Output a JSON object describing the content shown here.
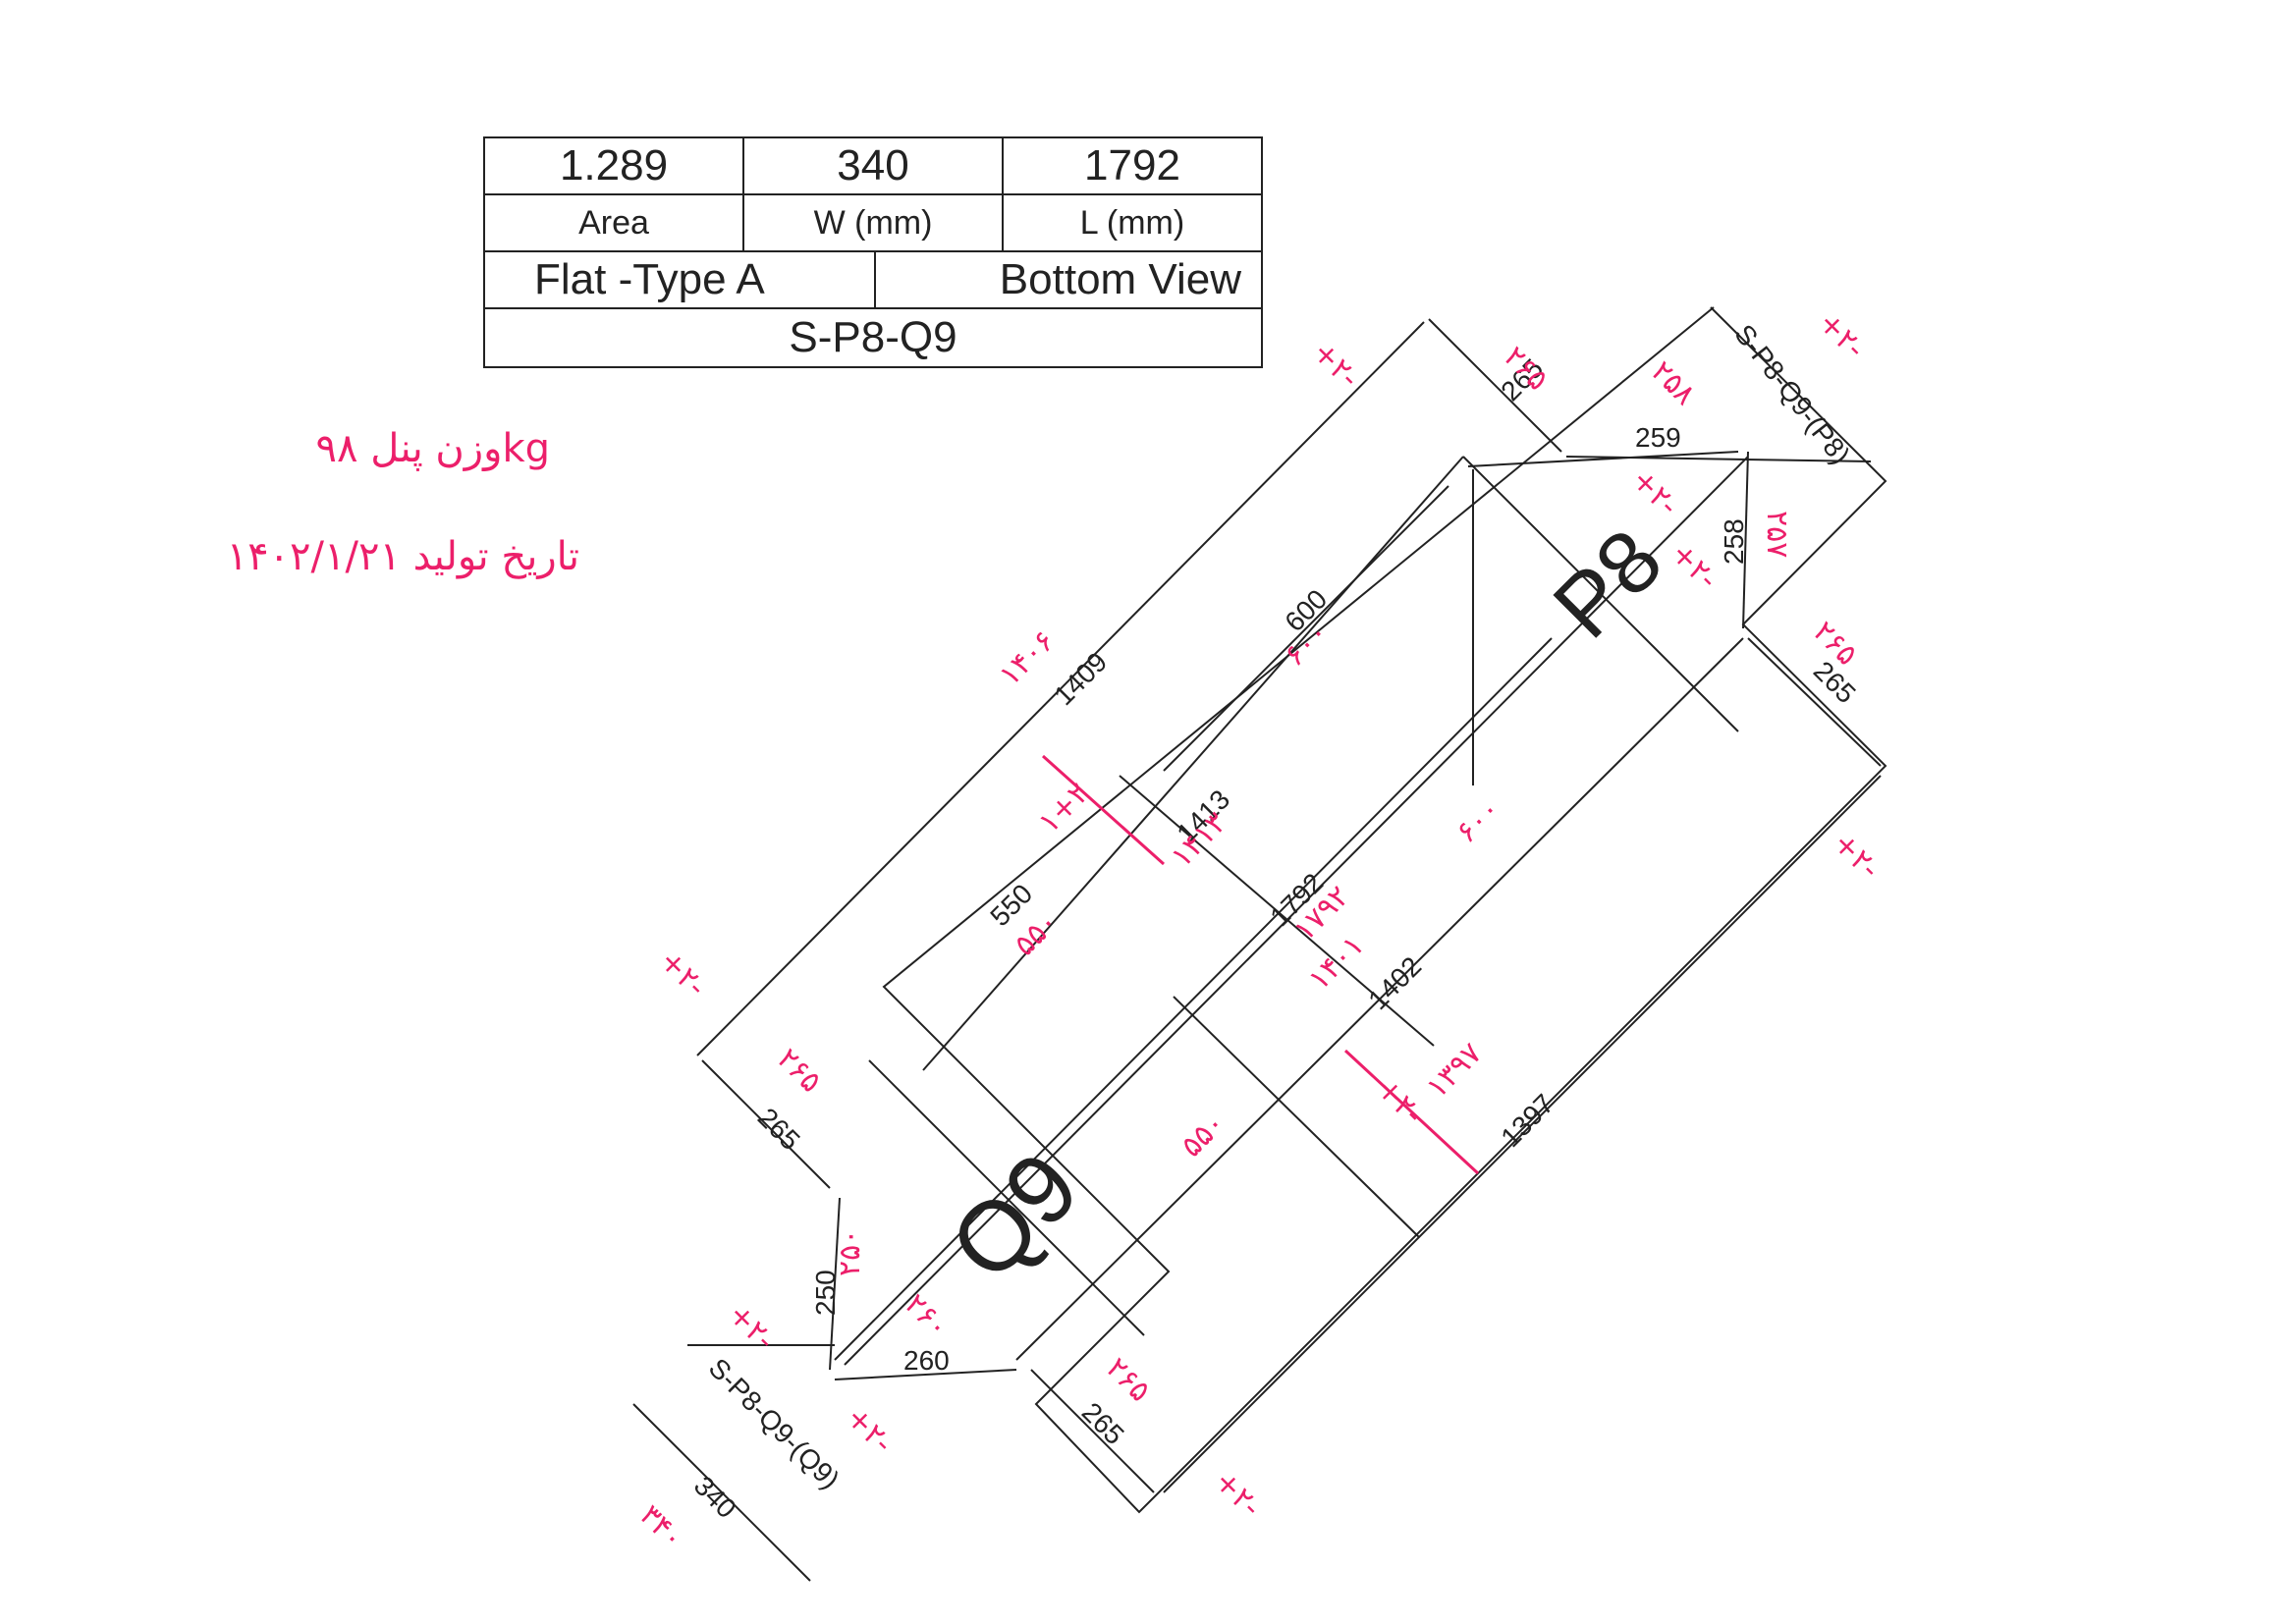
{
  "title_block": {
    "area_value": "1.289",
    "width_value": "340",
    "length_value": "1792",
    "area_label": "Area",
    "width_label": "W (mm)",
    "length_label": "L (mm)",
    "type_label": "Flat -Type A",
    "view_label": "Bottom View",
    "drawing_id": "S-P8-Q9"
  },
  "panel_labels": {
    "p8": "P8",
    "q9": "Q9",
    "edge_top": "S-P8-Q9-(P8)",
    "edge_bottom": "S-P8-Q9-(Q9)"
  },
  "dimensions": {
    "d265_a": "265",
    "d265_b": "265",
    "d265_c": "265",
    "d265_d": "265",
    "d259": "259",
    "d258": "258",
    "d260": "260",
    "d250": "250",
    "d600": "600",
    "d550": "550",
    "d1409": "1409",
    "d1413": "1413",
    "d1792": "1792",
    "d1402": "1402",
    "d1397": "1397",
    "d340": "340"
  },
  "handwritten": {
    "weight": "وزن پنل ۹۸kg",
    "date": "تاریخ تولید ۱۴۰۲/۱/۲۱",
    "n1409": "۱۴۰۶",
    "n1409b": "۱+۲",
    "n600": "۶۰۰",
    "n550": "۵۵۰",
    "n550b": "۵۵۰",
    "n1413": "۱۴۱۳",
    "n1792": "۱۷۹۲",
    "n1402": "۱۴۰۱",
    "n600b": "۶۰۰",
    "n265a": "۲۶۵",
    "n265b": "۲۶۵",
    "n265c": "۲۶۵",
    "n265d": "۲۶۵",
    "n259": "۲۵۸",
    "n258": "۲۵۷",
    "n250": "۲۵۰",
    "n260": "۲۶۰",
    "n340": "۳۴۰",
    "n1397": "۱۳۹۷",
    "pm1": "+۲-",
    "pm2": "+۲-",
    "pm3": "+۲-",
    "pm4": "+۲-",
    "pm5": "+۲-",
    "pm6": "+۲-",
    "pm7": "+۲-",
    "pm8": "+۲-",
    "pm9": "+۲-",
    "pm10": "+۲-"
  },
  "colors": {
    "ink": "#222222",
    "handwriting": "#ec1f6a"
  }
}
